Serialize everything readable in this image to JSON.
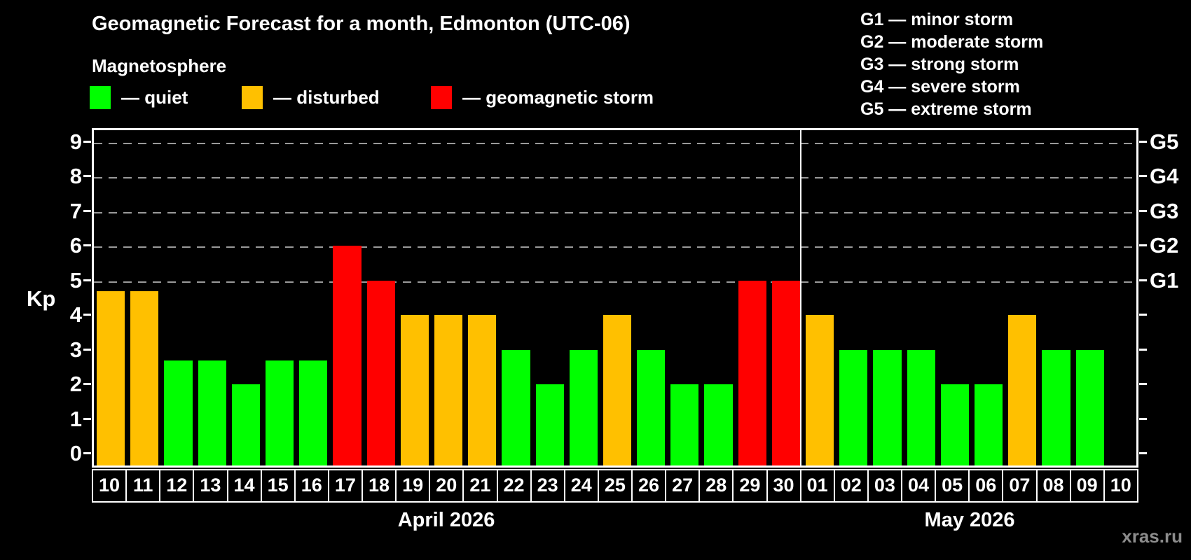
{
  "header": {
    "title": "Geomagnetic Forecast for a month, Edmonton (UTC-06)",
    "subtitle": "Magnetosphere"
  },
  "legend": [
    {
      "label": "— quiet",
      "status": "quiet",
      "color": "#00ff00"
    },
    {
      "label": "— disturbed",
      "status": "disturbed",
      "color": "#ffc000"
    },
    {
      "label": "— geomagnetic storm",
      "status": "storm",
      "color": "#ff0000"
    }
  ],
  "g_scale_legend": [
    "G1 — minor storm",
    "G2 — moderate storm",
    "G3 — strong storm",
    "G4 — severe storm",
    "G5 — extreme storm"
  ],
  "chart_data": {
    "type": "bar",
    "title": "Geomagnetic Forecast for a month, Edmonton (UTC-06)",
    "ylabel": "Kp",
    "ylim": [
      -0.4,
      9.4
    ],
    "yticks": [
      0,
      1,
      2,
      3,
      4,
      5,
      6,
      7,
      8,
      9
    ],
    "gridline_kp": [
      5,
      6,
      7,
      8,
      9
    ],
    "grid_style": "dashed horizontal lines at storm thresholds only",
    "right_axis": [
      {
        "kp": 5,
        "label": "G1"
      },
      {
        "kp": 6,
        "label": "G2"
      },
      {
        "kp": 7,
        "label": "G3"
      },
      {
        "kp": 8,
        "label": "G4"
      },
      {
        "kp": 9,
        "label": "G5"
      }
    ],
    "status_colors": {
      "quiet": "#00ff00",
      "disturbed": "#ffc000",
      "storm": "#ff0000"
    },
    "months": [
      {
        "label": "April 2026",
        "count": 21
      },
      {
        "label": "May 2026",
        "count": 10
      }
    ],
    "bars": [
      {
        "day": "10",
        "kp": 4.7,
        "status": "disturbed"
      },
      {
        "day": "11",
        "kp": 4.7,
        "status": "disturbed"
      },
      {
        "day": "12",
        "kp": 2.7,
        "status": "quiet"
      },
      {
        "day": "13",
        "kp": 2.7,
        "status": "quiet"
      },
      {
        "day": "14",
        "kp": 2.0,
        "status": "quiet"
      },
      {
        "day": "15",
        "kp": 2.7,
        "status": "quiet"
      },
      {
        "day": "16",
        "kp": 2.7,
        "status": "quiet"
      },
      {
        "day": "17",
        "kp": 6.0,
        "status": "storm"
      },
      {
        "day": "18",
        "kp": 5.0,
        "status": "storm"
      },
      {
        "day": "19",
        "kp": 4.0,
        "status": "disturbed"
      },
      {
        "day": "20",
        "kp": 4.0,
        "status": "disturbed"
      },
      {
        "day": "21",
        "kp": 4.0,
        "status": "disturbed"
      },
      {
        "day": "22",
        "kp": 3.0,
        "status": "quiet"
      },
      {
        "day": "23",
        "kp": 2.0,
        "status": "quiet"
      },
      {
        "day": "24",
        "kp": 3.0,
        "status": "quiet"
      },
      {
        "day": "25",
        "kp": 4.0,
        "status": "disturbed"
      },
      {
        "day": "26",
        "kp": 3.0,
        "status": "quiet"
      },
      {
        "day": "27",
        "kp": 2.0,
        "status": "quiet"
      },
      {
        "day": "28",
        "kp": 2.0,
        "status": "quiet"
      },
      {
        "day": "29",
        "kp": 5.0,
        "status": "storm"
      },
      {
        "day": "30",
        "kp": 5.0,
        "status": "storm"
      },
      {
        "day": "01",
        "kp": 4.0,
        "status": "disturbed"
      },
      {
        "day": "02",
        "kp": 3.0,
        "status": "quiet"
      },
      {
        "day": "03",
        "kp": 3.0,
        "status": "quiet"
      },
      {
        "day": "04",
        "kp": 3.0,
        "status": "quiet"
      },
      {
        "day": "05",
        "kp": 2.0,
        "status": "quiet"
      },
      {
        "day": "06",
        "kp": 2.0,
        "status": "quiet"
      },
      {
        "day": "07",
        "kp": 4.0,
        "status": "disturbed"
      },
      {
        "day": "08",
        "kp": 3.0,
        "status": "quiet"
      },
      {
        "day": "09",
        "kp": 3.0,
        "status": "quiet"
      },
      {
        "day": "10",
        "kp": null,
        "status": "none"
      }
    ]
  },
  "watermark": "xras.ru"
}
